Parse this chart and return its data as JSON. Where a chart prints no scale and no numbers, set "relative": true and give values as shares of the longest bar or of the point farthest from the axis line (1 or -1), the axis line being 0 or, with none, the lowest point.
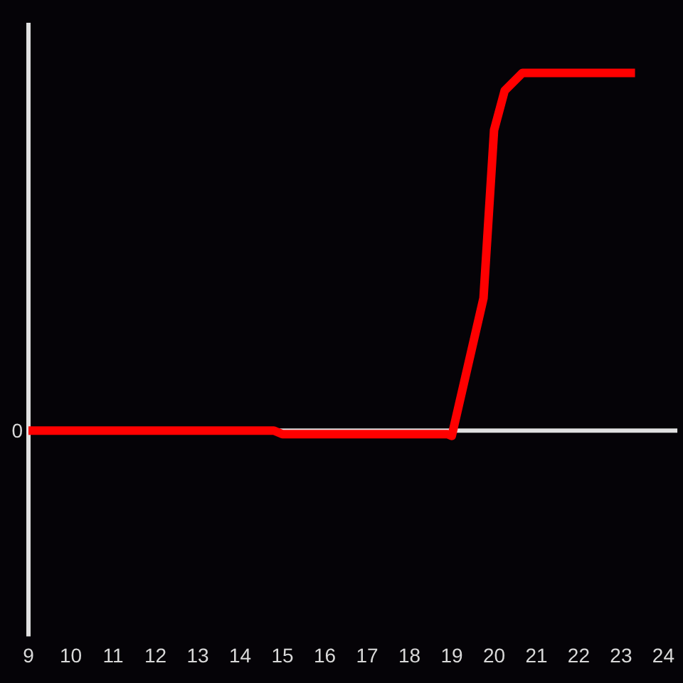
{
  "chart_data": {
    "type": "line",
    "relative": true,
    "x": [
      9,
      14.8,
      15,
      18.9,
      19,
      19.75,
      20,
      20.25,
      20.67,
      23.33
    ],
    "values": [
      0,
      0,
      -0.01,
      -0.01,
      -0.015,
      0.37,
      0.84,
      0.95,
      1,
      1
    ],
    "color": "#ff0000",
    "xlim": [
      9,
      24.33
    ],
    "xticks": [
      9,
      10,
      11,
      12,
      13,
      14,
      15,
      16,
      17,
      18,
      19,
      20,
      21,
      22,
      23,
      24
    ],
    "ref_lines": [
      {
        "axis": "y",
        "value": 0,
        "label": "0",
        "color": "#e0e0e0"
      }
    ],
    "grid": false,
    "marker": "none",
    "line_style": "solid"
  }
}
